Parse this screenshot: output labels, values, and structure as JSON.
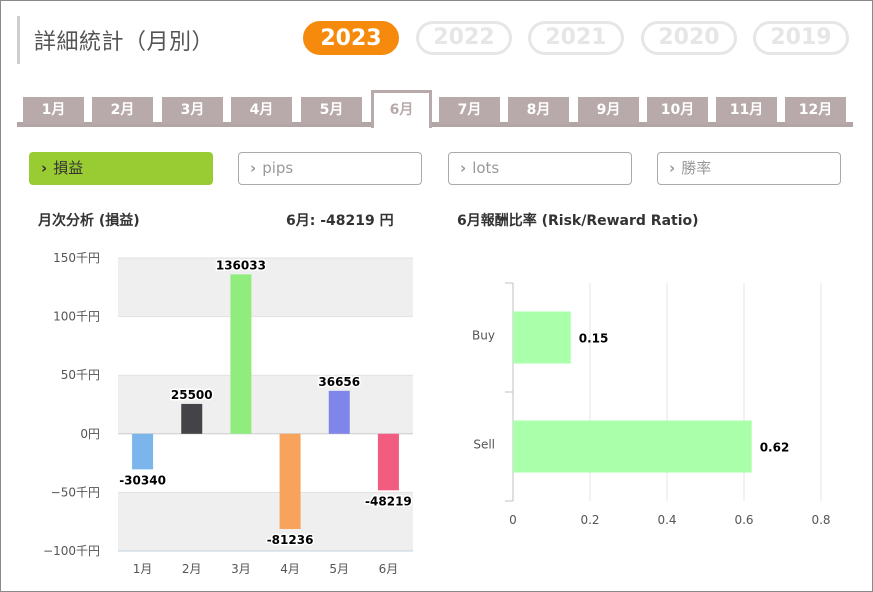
{
  "header": {
    "title": "詳細統計（月別）"
  },
  "years": [
    {
      "label": "2023",
      "active": true
    },
    {
      "label": "2022",
      "active": false
    },
    {
      "label": "2021",
      "active": false
    },
    {
      "label": "2020",
      "active": false
    },
    {
      "label": "2019",
      "active": false
    }
  ],
  "months": [
    "1月",
    "2月",
    "3月",
    "4月",
    "5月",
    "6月",
    "7月",
    "8月",
    "9月",
    "10月",
    "11月",
    "12月"
  ],
  "active_month_index": 5,
  "metric_tabs": [
    {
      "label": "損益",
      "active": true
    },
    {
      "label": "pips",
      "active": false
    },
    {
      "label": "lots",
      "active": false
    },
    {
      "label": "勝率",
      "active": false
    }
  ],
  "left_panel": {
    "heading": "月次分析 (損益)",
    "summary": "6月:  -48219 円"
  },
  "right_panel": {
    "heading": "6月報酬比率 (Risk/Reward Ratio)"
  },
  "colors": {
    "accent": "#f58a0d",
    "tab": "#b8aaab",
    "metric_active": "#99cc33",
    "rr_bar": "#aaffaa"
  },
  "chart_data": [
    {
      "type": "bar",
      "categories": [
        "1月",
        "2月",
        "3月",
        "4月",
        "5月",
        "6月"
      ],
      "values": [
        -30340,
        25500,
        136033,
        -81236,
        36656,
        -48219
      ],
      "value_labels": [
        "-30340",
        "25500",
        "136033",
        "-81236",
        "36656",
        "-48219"
      ],
      "colors": [
        "#7cb5ec",
        "#434348",
        "#90ed7d",
        "#f7a35c",
        "#8085e9",
        "#f15c80"
      ],
      "yticks": [
        150000,
        100000,
        50000,
        0,
        -50000,
        -100000
      ],
      "ytick_labels": [
        "150千円",
        "100千円",
        "50千円",
        "0円",
        "−50千円",
        "−100千円"
      ],
      "ylim": [
        -100000,
        150000
      ],
      "xlabel": "",
      "ylabel": "",
      "grid": "alternating bands"
    },
    {
      "type": "bar",
      "orientation": "horizontal",
      "categories": [
        "Buy",
        "Sell"
      ],
      "values": [
        0.15,
        0.62
      ],
      "value_labels": [
        "0.15",
        "0.62"
      ],
      "xticks": [
        0,
        0.2,
        0.4,
        0.6,
        0.8
      ],
      "xtick_labels": [
        "0",
        "0.2",
        "0.4",
        "0.6",
        "0.8"
      ],
      "xlim": [
        0,
        0.8
      ],
      "grid": true
    }
  ]
}
